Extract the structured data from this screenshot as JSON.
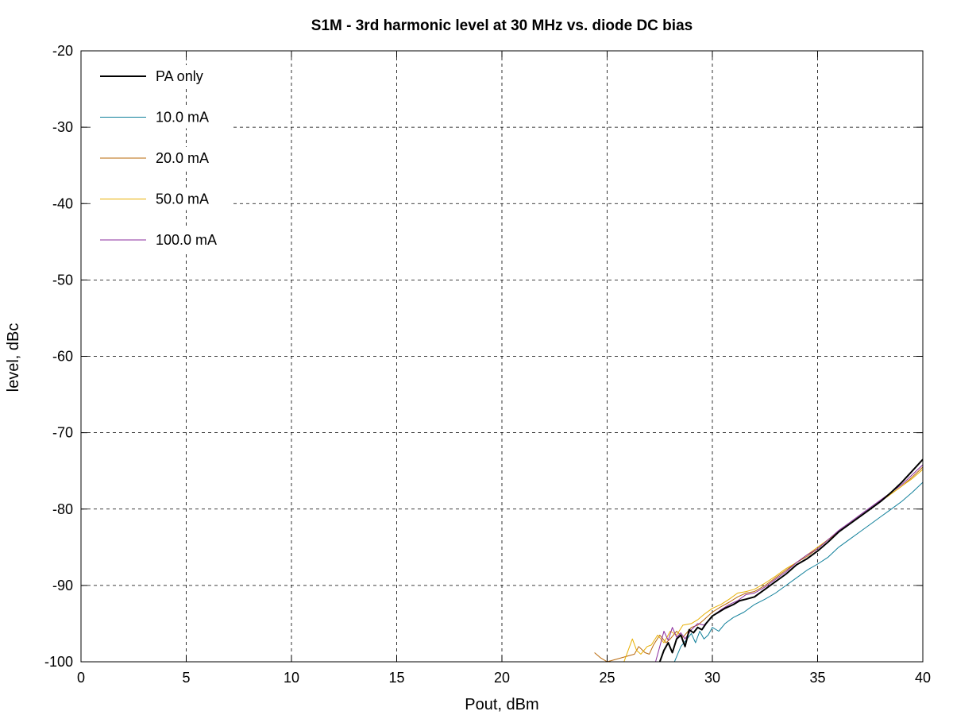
{
  "chart_data": {
    "type": "line",
    "title": "S1M - 3rd harmonic level at 30 MHz vs. diode DC bias",
    "xlabel": "Pout, dBm",
    "ylabel": "level, dBc",
    "xlim": [
      0,
      40
    ],
    "ylim": [
      -100,
      -20
    ],
    "xticks": [
      0,
      5,
      10,
      15,
      20,
      25,
      30,
      35,
      40
    ],
    "yticks": [
      -100,
      -90,
      -80,
      -70,
      -60,
      -50,
      -40,
      -30,
      -20
    ],
    "grid": true,
    "legend_position": "top-left",
    "series": [
      {
        "name": "PA only",
        "color": "#000000",
        "width": 2,
        "points": [
          [
            27.5,
            -100
          ],
          [
            27.7,
            -98.5
          ],
          [
            27.9,
            -97.5
          ],
          [
            28.1,
            -98.8
          ],
          [
            28.3,
            -97
          ],
          [
            28.5,
            -96.5
          ],
          [
            28.7,
            -98
          ],
          [
            28.9,
            -95.8
          ],
          [
            29.1,
            -96.2
          ],
          [
            29.3,
            -95.5
          ],
          [
            29.5,
            -95.8
          ],
          [
            29.7,
            -95
          ],
          [
            30.0,
            -94
          ],
          [
            30.3,
            -93.5
          ],
          [
            30.6,
            -93
          ],
          [
            31.0,
            -92.5
          ],
          [
            31.3,
            -92
          ],
          [
            31.6,
            -91.8
          ],
          [
            32.0,
            -91.5
          ],
          [
            32.5,
            -90.5
          ],
          [
            33.0,
            -89.5
          ],
          [
            33.5,
            -88.5
          ],
          [
            34.0,
            -87.3
          ],
          [
            34.5,
            -86.5
          ],
          [
            35.0,
            -85.5
          ],
          [
            35.5,
            -84.3
          ],
          [
            36.0,
            -83
          ],
          [
            36.5,
            -82
          ],
          [
            37.0,
            -81
          ],
          [
            37.5,
            -80
          ],
          [
            38.0,
            -79
          ],
          [
            38.5,
            -77.8
          ],
          [
            39.0,
            -76.5
          ],
          [
            39.5,
            -75
          ],
          [
            40.0,
            -73.5
          ]
        ]
      },
      {
        "name": "10.0 mA",
        "color": "#0f7f9a",
        "width": 1,
        "points": [
          [
            28.2,
            -100
          ],
          [
            28.5,
            -98
          ],
          [
            28.8,
            -97
          ],
          [
            29.0,
            -96.3
          ],
          [
            29.2,
            -97.5
          ],
          [
            29.4,
            -96
          ],
          [
            29.6,
            -97
          ],
          [
            29.8,
            -96.5
          ],
          [
            30.0,
            -95.5
          ],
          [
            30.3,
            -96
          ],
          [
            30.6,
            -95
          ],
          [
            31.0,
            -94.2
          ],
          [
            31.5,
            -93.5
          ],
          [
            32.0,
            -92.5
          ],
          [
            32.5,
            -91.8
          ],
          [
            33.0,
            -91
          ],
          [
            33.5,
            -90
          ],
          [
            34.0,
            -89
          ],
          [
            34.5,
            -88
          ],
          [
            35.0,
            -87.2
          ],
          [
            35.5,
            -86.3
          ],
          [
            36.0,
            -85
          ],
          [
            36.5,
            -84
          ],
          [
            37.0,
            -83
          ],
          [
            37.5,
            -82
          ],
          [
            38.0,
            -81
          ],
          [
            38.5,
            -80
          ],
          [
            39.0,
            -79
          ],
          [
            39.5,
            -77.8
          ],
          [
            40.0,
            -76.5
          ]
        ]
      },
      {
        "name": "20.0 mA",
        "color": "#b8680a",
        "width": 1,
        "points": [
          [
            24.4,
            -98.8
          ],
          [
            24.7,
            -99.5
          ],
          [
            25.0,
            -100
          ],
          [
            26.3,
            -99
          ],
          [
            26.5,
            -98
          ],
          [
            26.8,
            -98.8
          ],
          [
            27.0,
            -99
          ],
          [
            27.2,
            -97.8
          ],
          [
            27.5,
            -96.5
          ],
          [
            27.8,
            -97.5
          ],
          [
            28.0,
            -97
          ],
          [
            28.3,
            -96
          ],
          [
            28.6,
            -96.8
          ],
          [
            29.0,
            -95.5
          ],
          [
            29.3,
            -95.2
          ],
          [
            29.6,
            -94.5
          ],
          [
            30.0,
            -93.5
          ],
          [
            30.4,
            -92.8
          ],
          [
            30.8,
            -92.2
          ],
          [
            31.2,
            -91.5
          ],
          [
            31.6,
            -91
          ],
          [
            32.0,
            -90.8
          ],
          [
            32.5,
            -90
          ],
          [
            33.0,
            -89
          ],
          [
            33.5,
            -88
          ],
          [
            34.0,
            -87
          ],
          [
            34.5,
            -86.2
          ],
          [
            35.0,
            -85.2
          ],
          [
            35.5,
            -84
          ],
          [
            36.0,
            -83
          ],
          [
            36.5,
            -82
          ],
          [
            37.0,
            -81
          ],
          [
            37.5,
            -80
          ],
          [
            38.0,
            -79
          ],
          [
            38.5,
            -78
          ],
          [
            39.0,
            -77
          ],
          [
            39.5,
            -75.8
          ],
          [
            40.0,
            -74.5
          ]
        ]
      },
      {
        "name": "50.0 mA",
        "color": "#e8b004",
        "width": 1,
        "points": [
          [
            25.8,
            -100
          ],
          [
            26.0,
            -98.5
          ],
          [
            26.2,
            -97
          ],
          [
            26.4,
            -98.5
          ],
          [
            26.6,
            -99
          ],
          [
            26.9,
            -98
          ],
          [
            27.1,
            -97.8
          ],
          [
            27.4,
            -96.5
          ],
          [
            27.7,
            -97.5
          ],
          [
            28.0,
            -96
          ],
          [
            28.3,
            -96.5
          ],
          [
            28.6,
            -95.2
          ],
          [
            29.0,
            -95
          ],
          [
            29.3,
            -94.5
          ],
          [
            29.6,
            -93.8
          ],
          [
            30.0,
            -93
          ],
          [
            30.4,
            -92.5
          ],
          [
            30.8,
            -91.8
          ],
          [
            31.2,
            -91
          ],
          [
            31.6,
            -90.8
          ],
          [
            32.0,
            -90.5
          ],
          [
            32.5,
            -89.7
          ],
          [
            33.0,
            -88.8
          ],
          [
            33.5,
            -87.8
          ],
          [
            34.0,
            -87
          ],
          [
            34.5,
            -86
          ],
          [
            35.0,
            -85
          ],
          [
            35.5,
            -84
          ],
          [
            36.0,
            -83
          ],
          [
            36.5,
            -82
          ],
          [
            37.0,
            -81
          ],
          [
            37.5,
            -80
          ],
          [
            38.0,
            -79
          ],
          [
            38.5,
            -78
          ],
          [
            39.0,
            -77
          ],
          [
            39.5,
            -76
          ],
          [
            40.0,
            -74.8
          ]
        ]
      },
      {
        "name": "100.0 mA",
        "color": "#8a2b9c",
        "width": 1,
        "points": [
          [
            27.3,
            -100
          ],
          [
            27.5,
            -98
          ],
          [
            27.7,
            -96
          ],
          [
            27.9,
            -97.2
          ],
          [
            28.1,
            -95.5
          ],
          [
            28.3,
            -96.8
          ],
          [
            28.5,
            -96.2
          ],
          [
            28.7,
            -97
          ],
          [
            29.0,
            -95.8
          ],
          [
            29.3,
            -95
          ],
          [
            29.6,
            -95.2
          ],
          [
            30.0,
            -94
          ],
          [
            30.4,
            -93.2
          ],
          [
            30.8,
            -92.5
          ],
          [
            31.2,
            -92
          ],
          [
            31.6,
            -91.2
          ],
          [
            32.0,
            -91
          ],
          [
            32.5,
            -90.2
          ],
          [
            33.0,
            -89.2
          ],
          [
            33.5,
            -88.2
          ],
          [
            34.0,
            -87
          ],
          [
            34.5,
            -86
          ],
          [
            35.0,
            -85.2
          ],
          [
            35.5,
            -84
          ],
          [
            36.0,
            -82.8
          ],
          [
            36.5,
            -81.8
          ],
          [
            37.0,
            -80.8
          ],
          [
            37.5,
            -79.8
          ],
          [
            38.0,
            -78.8
          ],
          [
            38.5,
            -77.8
          ],
          [
            39.0,
            -76.8
          ],
          [
            39.5,
            -75.5
          ],
          [
            40.0,
            -74.2
          ]
        ]
      }
    ]
  }
}
